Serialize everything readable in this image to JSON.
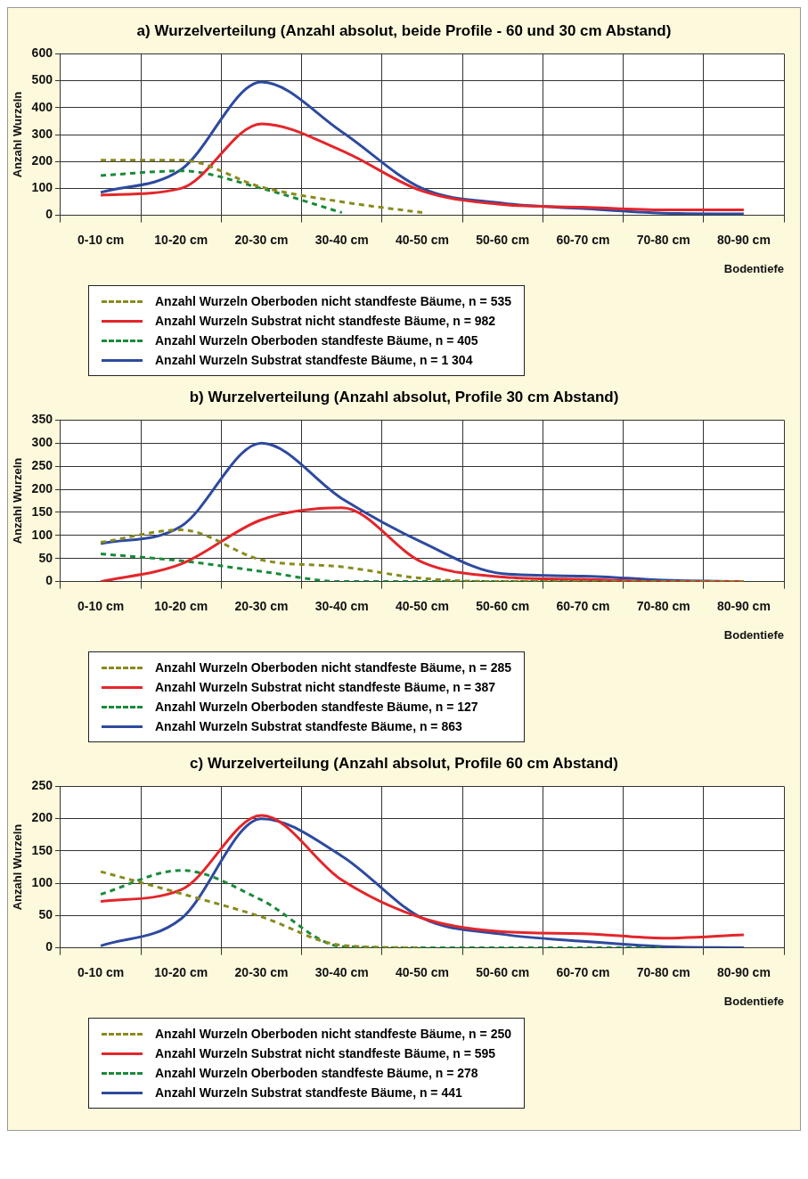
{
  "chart_data": [
    {
      "type": "line",
      "title": "a) Wurzelverteilung (Anzahl absolut, beide Profile - 60 und 30 cm Abstand)",
      "xlabel": "Bodentiefe",
      "ylabel": "Anzahl Wurzeln",
      "categories": [
        "0-10 cm",
        "10-20 cm",
        "20-30 cm",
        "30-40 cm",
        "40-50 cm",
        "50-60 cm",
        "60-70 cm",
        "70-80 cm",
        "80-90 cm"
      ],
      "ylim": [
        0,
        600
      ],
      "yticks": [
        0,
        100,
        200,
        300,
        400,
        500,
        600
      ],
      "grid": true,
      "legend": "bottom",
      "marker": "none",
      "series": [
        {
          "name": "Anzahl Wurzeln Oberboden nicht standfeste Bäume, n = 535",
          "color": "#8a8a1e",
          "line_style": "dashed",
          "values": [
            205,
            205,
            105,
            50,
            10,
            null,
            null,
            null,
            null
          ]
        },
        {
          "name": "Anzahl Wurzeln Substrat nicht standfeste Bäume, n = 982",
          "color": "#e3262b",
          "line_style": "solid",
          "values": [
            75,
            100,
            340,
            240,
            90,
            40,
            30,
            20,
            20
          ]
        },
        {
          "name": "Anzahl Wurzeln Oberboden standfeste Bäume, n = 405",
          "color": "#1a8a3a",
          "line_style": "dashed",
          "values": [
            148,
            165,
            100,
            10,
            null,
            null,
            null,
            null,
            null
          ]
        },
        {
          "name": "Anzahl Wurzeln Substrat standfeste Bäume, n = 1 304",
          "color": "#2e4a9e",
          "line_style": "solid",
          "values": [
            85,
            170,
            495,
            310,
            100,
            45,
            25,
            8,
            5
          ]
        }
      ]
    },
    {
      "type": "line",
      "title": "b) Wurzelverteilung (Anzahl absolut, Profile 30 cm Abstand)",
      "xlabel": "Bodentiefe",
      "ylabel": "Anzahl Wurzeln",
      "categories": [
        "0-10 cm",
        "10-20 cm",
        "20-30 cm",
        "30-40 cm",
        "40-50 cm",
        "50-60 cm",
        "60-70 cm",
        "70-80 cm",
        "80-90 cm"
      ],
      "ylim": [
        0,
        350
      ],
      "yticks": [
        0,
        50,
        100,
        150,
        200,
        250,
        300,
        350
      ],
      "grid": true,
      "legend": "bottom",
      "marker": "none",
      "series": [
        {
          "name": "Anzahl Wurzeln Oberboden nicht standfeste Bäume, n = 285",
          "color": "#8a8a1e",
          "line_style": "dashed",
          "values": [
            85,
            112,
            47,
            32,
            7,
            0,
            0,
            0,
            0
          ]
        },
        {
          "name": "Anzahl Wurzeln Substrat nicht standfeste Bäume, n = 387",
          "color": "#e3262b",
          "line_style": "solid",
          "values": [
            0,
            38,
            134,
            160,
            42,
            10,
            5,
            0,
            0
          ]
        },
        {
          "name": "Anzahl Wurzeln Oberboden standfeste Bäume, n = 127",
          "color": "#1a8a3a",
          "line_style": "dashed",
          "values": [
            60,
            45,
            22,
            0,
            0,
            0,
            0,
            0,
            0
          ]
        },
        {
          "name": "Anzahl Wurzeln Substrat standfeste Bäume, n = 863",
          "color": "#2e4a9e",
          "line_style": "solid",
          "values": [
            82,
            120,
            300,
            180,
            85,
            17,
            12,
            3,
            0
          ]
        }
      ]
    },
    {
      "type": "line",
      "title": "c) Wurzelverteilung (Anzahl absolut, Profile 60 cm Abstand)",
      "xlabel": "Bodentiefe",
      "ylabel": "Anzahl Wurzeln",
      "categories": [
        "0-10 cm",
        "10-20 cm",
        "20-30 cm",
        "30-40 cm",
        "40-50 cm",
        "50-60 cm",
        "60-70 cm",
        "70-80 cm",
        "80-90 cm"
      ],
      "ylim": [
        0,
        250
      ],
      "yticks": [
        0,
        50,
        100,
        150,
        200,
        250
      ],
      "grid": true,
      "legend": "bottom",
      "marker": "none",
      "series": [
        {
          "name": "Anzahl Wurzeln Oberboden nicht standfeste Bäume, n = 250",
          "color": "#8a8a1e",
          "line_style": "dashed",
          "values": [
            118,
            84,
            48,
            4,
            0,
            null,
            null,
            null,
            null
          ]
        },
        {
          "name": "Anzahl Wurzeln Substrat nicht standfeste Bäume, n = 595",
          "color": "#e3262b",
          "line_style": "solid",
          "values": [
            72,
            90,
            205,
            105,
            46,
            25,
            22,
            15,
            20
          ]
        },
        {
          "name": "Anzahl Wurzeln Oberboden standfeste Bäume, n = 278",
          "color": "#1a8a3a",
          "line_style": "dashed",
          "values": [
            83,
            120,
            74,
            2,
            0,
            0,
            0,
            0,
            null
          ]
        },
        {
          "name": "Anzahl Wurzeln Substrat standfeste Bäume, n = 441",
          "color": "#2e4a9e",
          "line_style": "solid",
          "values": [
            3,
            45,
            200,
            142,
            46,
            21,
            10,
            2,
            0
          ]
        }
      ]
    }
  ]
}
